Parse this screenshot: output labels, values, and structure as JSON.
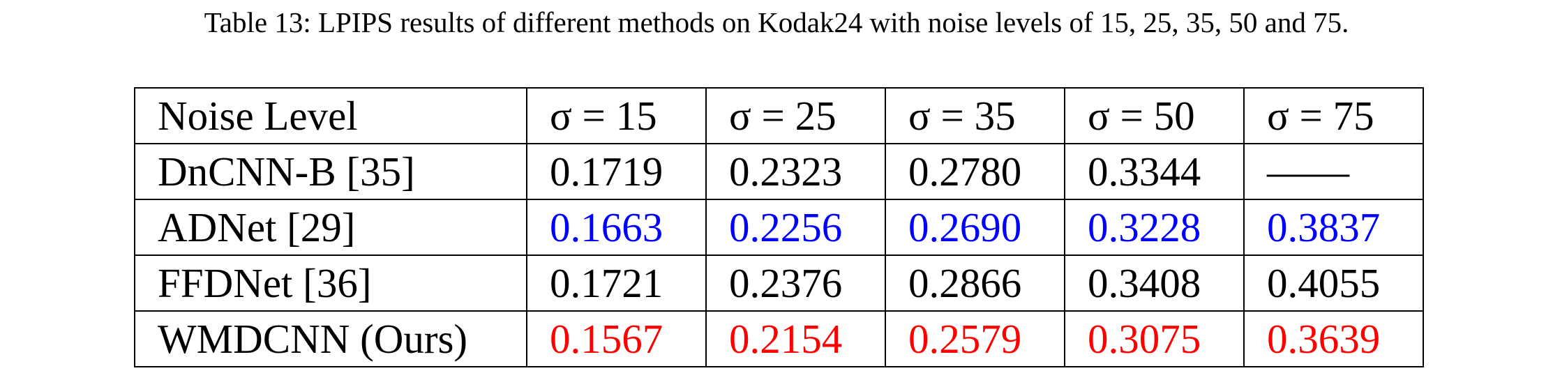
{
  "caption": "Table 13: LPIPS results of different methods on Kodak24 with noise levels of 15, 25, 35, 50 and 75.",
  "table": {
    "header": [
      "Noise Level",
      "σ = 15",
      "σ = 25",
      "σ = 35",
      "σ = 50",
      "σ = 75"
    ],
    "rows": [
      [
        "DnCNN-B [35]",
        "0.1719",
        "0.2323",
        "0.2780",
        "0.3344",
        "——"
      ],
      [
        "ADNet [29]",
        "0.1663",
        "0.2256",
        "0.2690",
        "0.3228",
        "0.3837"
      ],
      [
        "FFDNet [36]",
        "0.1721",
        "0.2376",
        "0.2866",
        "0.3408",
        "0.4055"
      ],
      [
        "WMDCNN (Ours)",
        "0.1567",
        "0.2154",
        "0.2579",
        "0.3075",
        "0.3639"
      ]
    ],
    "row_colors": [
      "#000000",
      "#0000ff",
      "#000000",
      "#ff0000"
    ]
  }
}
